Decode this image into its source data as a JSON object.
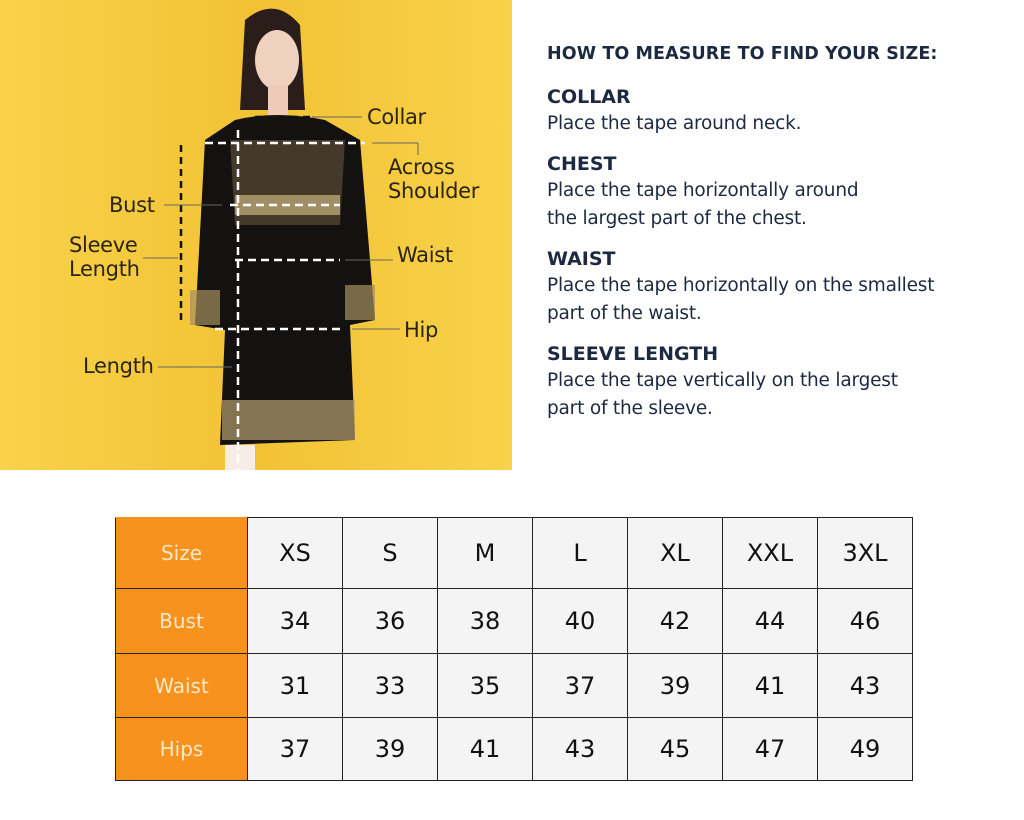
{
  "diagram": {
    "labels": {
      "collar": "Collar",
      "across_shoulder": "Across Shoulder",
      "bust": "Bust",
      "sleeve_length": "Sleeve Length",
      "waist": "Waist",
      "hip": "Hip",
      "length": "Length"
    },
    "background_color": "#f6cb3f"
  },
  "guide": {
    "title": "HOW TO MEASURE TO FIND YOUR SIZE:",
    "sections": [
      {
        "heading": "COLLAR",
        "text": "Place the tape around neck."
      },
      {
        "heading": "CHEST",
        "text": "Place the tape horizontally around the largest part of the chest."
      },
      {
        "heading": "WAIST",
        "text": "Place the tape horizontally on the smallest part of the waist."
      },
      {
        "heading": "SLEEVE LENGTH",
        "text": "Place the tape vertically on the largest part of the sleeve."
      }
    ]
  },
  "size_table": {
    "header_color": "#f7921e",
    "rows": [
      {
        "label": "Size",
        "values": [
          "XS",
          "S",
          "M",
          "L",
          "XL",
          "XXL",
          "3XL"
        ]
      },
      {
        "label": "Bust",
        "values": [
          "34",
          "36",
          "38",
          "40",
          "42",
          "44",
          "46"
        ]
      },
      {
        "label": "Waist",
        "values": [
          "31",
          "33",
          "35",
          "37",
          "39",
          "41",
          "43"
        ]
      },
      {
        "label": "Hips",
        "values": [
          "37",
          "39",
          "41",
          "43",
          "45",
          "47",
          "49"
        ]
      }
    ]
  }
}
